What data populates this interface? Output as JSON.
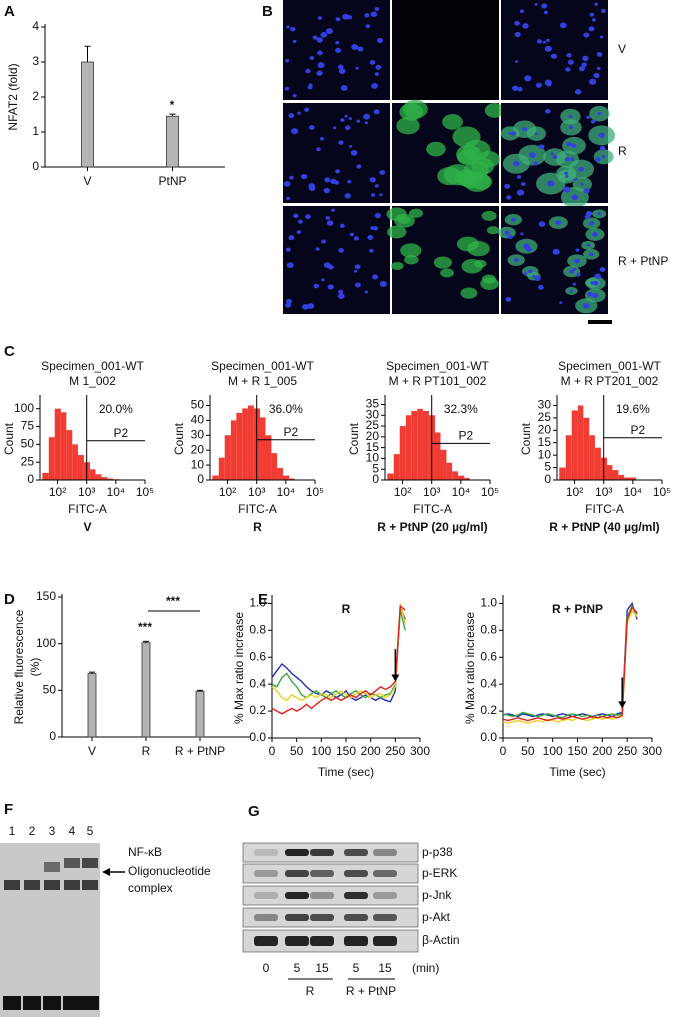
{
  "panel_labels": [
    "A",
    "B",
    "C",
    "D",
    "E",
    "F",
    "G"
  ],
  "chart_data": [
    {
      "type": "bar",
      "ylabel": "NFAT2 (fold)",
      "categories": [
        "V",
        "PtNP"
      ],
      "values": [
        3.0,
        1.45
      ],
      "errors": [
        0.45,
        0.06
      ],
      "ylim": [
        0,
        4
      ],
      "yticks": [
        0,
        1,
        2,
        3,
        4
      ],
      "color": "#b4b4b4",
      "annotations": [
        "*"
      ]
    },
    {
      "type": "bar",
      "ylabel": [
        "Relative fluorescence",
        "(%)"
      ],
      "categories": [
        "V",
        "R",
        "R + PtNP"
      ],
      "values": [
        68,
        101,
        49
      ],
      "errors": [
        1.5,
        1.5,
        1
      ],
      "ylim": [
        0,
        150
      ],
      "yticks": [
        0,
        50,
        100,
        150
      ],
      "color": "#b4b4b4",
      "annotations": [
        "***",
        "***"
      ]
    },
    {
      "type": "line",
      "title": "R",
      "ylabel": "% Max ratio increase",
      "xlabel": "Time (sec)",
      "x": [
        0,
        10,
        20,
        30,
        40,
        50,
        60,
        70,
        80,
        90,
        100,
        110,
        120,
        130,
        140,
        150,
        160,
        170,
        180,
        190,
        200,
        210,
        220,
        230,
        240,
        250,
        260,
        270
      ],
      "xlim": [
        0,
        300
      ],
      "xticks": [
        0,
        50,
        100,
        150,
        200,
        250,
        300
      ],
      "ylim": [
        0,
        1.04
      ],
      "yticks": [
        {
          "value": 0,
          "label": "0.0"
        },
        0.2,
        0.4,
        0.6,
        0.8,
        {
          "value": 1,
          "label": "1.0"
        }
      ],
      "arrow_x": 250,
      "series": [
        {
          "color": "#1f2fb0",
          "values": [
            0.45,
            0.5,
            0.55,
            0.52,
            0.48,
            0.45,
            0.42,
            0.38,
            0.35,
            0.33,
            0.32,
            0.35,
            0.33,
            0.3,
            0.32,
            0.35,
            0.3,
            0.28,
            0.3,
            0.32,
            0.3,
            0.28,
            0.3,
            0.28,
            0.27,
            0.35,
            0.98,
            0.88
          ]
        },
        {
          "color": "#3aa83a",
          "values": [
            0.4,
            0.38,
            0.45,
            0.48,
            0.42,
            0.38,
            0.32,
            0.3,
            0.33,
            0.35,
            0.32,
            0.3,
            0.33,
            0.35,
            0.32,
            0.3,
            0.33,
            0.35,
            0.32,
            0.3,
            0.33,
            0.32,
            0.3,
            0.32,
            0.33,
            0.4,
            0.95,
            0.8
          ]
        },
        {
          "color": "#f0d020",
          "values": [
            0.38,
            0.35,
            0.3,
            0.28,
            0.32,
            0.3,
            0.28,
            0.3,
            0.32,
            0.3,
            0.33,
            0.32,
            0.3,
            0.33,
            0.35,
            0.32,
            0.3,
            0.33,
            0.35,
            0.33,
            0.3,
            0.32,
            0.33,
            0.3,
            0.32,
            0.38,
            1.0,
            0.85
          ]
        },
        {
          "color": "#e02020",
          "values": [
            0.22,
            0.2,
            0.18,
            0.2,
            0.22,
            0.2,
            0.22,
            0.25,
            0.22,
            0.25,
            0.28,
            0.3,
            0.28,
            0.3,
            0.28,
            0.3,
            0.32,
            0.3,
            0.33,
            0.35,
            0.32,
            0.35,
            0.38,
            0.36,
            0.38,
            0.42,
            0.98,
            0.95
          ]
        }
      ]
    },
    {
      "type": "line",
      "title": "R + PtNP",
      "ylabel": "% Max ratio increase",
      "xlabel": "Time (sec)",
      "x": [
        0,
        10,
        20,
        30,
        40,
        50,
        60,
        70,
        80,
        90,
        100,
        110,
        120,
        130,
        140,
        150,
        160,
        170,
        180,
        190,
        200,
        210,
        220,
        230,
        240,
        250,
        260,
        270
      ],
      "xlim": [
        0,
        300
      ],
      "xticks": [
        0,
        50,
        100,
        150,
        200,
        250,
        300
      ],
      "ylim": [
        0,
        1.04
      ],
      "yticks": [
        {
          "value": 0,
          "label": "0.0"
        },
        0.2,
        0.4,
        0.6,
        0.8,
        {
          "value": 1,
          "label": "1.0"
        }
      ],
      "arrow_x": 240,
      "series": [
        {
          "color": "#1f2fb0",
          "values": [
            0.17,
            0.18,
            0.17,
            0.16,
            0.18,
            0.17,
            0.16,
            0.17,
            0.18,
            0.17,
            0.16,
            0.17,
            0.18,
            0.17,
            0.16,
            0.17,
            0.18,
            0.17,
            0.16,
            0.17,
            0.18,
            0.17,
            0.16,
            0.18,
            0.19,
            0.95,
            1.0,
            0.88
          ]
        },
        {
          "color": "#3aa83a",
          "values": [
            0.18,
            0.17,
            0.16,
            0.17,
            0.19,
            0.18,
            0.17,
            0.16,
            0.17,
            0.18,
            0.17,
            0.16,
            0.15,
            0.17,
            0.18,
            0.17,
            0.16,
            0.17,
            0.15,
            0.17,
            0.16,
            0.17,
            0.18,
            0.17,
            0.18,
            0.9,
            0.98,
            0.92
          ]
        },
        {
          "color": "#f0d020",
          "values": [
            0.12,
            0.11,
            0.12,
            0.13,
            0.12,
            0.11,
            0.12,
            0.13,
            0.12,
            0.14,
            0.13,
            0.12,
            0.13,
            0.14,
            0.13,
            0.15,
            0.14,
            0.13,
            0.14,
            0.15,
            0.14,
            0.15,
            0.14,
            0.15,
            0.16,
            0.85,
            0.95,
            0.9
          ]
        },
        {
          "color": "#e02020",
          "values": [
            0.14,
            0.13,
            0.14,
            0.15,
            0.14,
            0.13,
            0.14,
            0.15,
            0.14,
            0.13,
            0.14,
            0.15,
            0.14,
            0.15,
            0.16,
            0.15,
            0.14,
            0.15,
            0.16,
            0.15,
            0.16,
            0.15,
            0.16,
            0.15,
            0.17,
            0.88,
            0.97,
            0.93
          ]
        }
      ]
    },
    {
      "type": "histogram",
      "title": [
        "Specimen_001-WT",
        "M 1_002"
      ],
      "ylabel": "Count",
      "xlabel": "FITC-A",
      "condition": "V",
      "xscale": "log",
      "xlim": [
        25,
        100000
      ],
      "xticks": [
        {
          "value": 100,
          "label": "10²"
        },
        {
          "value": 1000,
          "label": "10³"
        },
        {
          "value": 10000,
          "label": "10⁴"
        },
        {
          "value": 100000,
          "label": "10⁵"
        }
      ],
      "ylim": [
        0,
        115
      ],
      "yticks": [
        0,
        25,
        50,
        75,
        100
      ],
      "bins": [
        30,
        50,
        80,
        130,
        200,
        320,
        500,
        800,
        1300,
        2000,
        3200,
        5000,
        8000,
        13000,
        20000,
        32000
      ],
      "counts": [
        10,
        60,
        100,
        95,
        70,
        50,
        35,
        25,
        15,
        8,
        4,
        2,
        1,
        0,
        0
      ],
      "color": "#f03c32",
      "gate_x": 1000,
      "gate_y": 55,
      "gate_name": "P2",
      "gate_percent": "20.0%"
    },
    {
      "type": "histogram",
      "title": [
        "Specimen_001-WT",
        "M + R 1_005"
      ],
      "ylabel": "Count",
      "xlabel": "FITC-A",
      "condition": "R",
      "xscale": "log",
      "xlim": [
        25,
        100000
      ],
      "xticks": [
        {
          "value": 100,
          "label": "10²"
        },
        {
          "value": 1000,
          "label": "10³"
        },
        {
          "value": 10000,
          "label": "10⁴"
        },
        {
          "value": 100000,
          "label": "10⁵"
        }
      ],
      "ylim": [
        0,
        55
      ],
      "yticks": [
        0,
        10,
        20,
        30,
        40,
        50
      ],
      "bins": [
        30,
        50,
        80,
        130,
        200,
        320,
        500,
        800,
        1300,
        2000,
        3200,
        5000,
        8000,
        13000,
        20000,
        32000
      ],
      "counts": [
        3,
        15,
        30,
        40,
        45,
        48,
        50,
        48,
        42,
        30,
        18,
        8,
        3,
        1,
        0
      ],
      "color": "#f03c32",
      "gate_x": 1000,
      "gate_y": 27,
      "gate_name": "P2",
      "gate_percent": "36.0%"
    },
    {
      "type": "histogram",
      "title": [
        "Specimen_001-WT",
        "M + R PT101_002"
      ],
      "ylabel": "Count",
      "xlabel": "FITC-A",
      "condition": "R + PtNP (20 µg/ml)",
      "xscale": "log",
      "xlim": [
        25,
        100000
      ],
      "xticks": [
        {
          "value": 100,
          "label": "10²"
        },
        {
          "value": 1000,
          "label": "10³"
        },
        {
          "value": 10000,
          "label": "10⁴"
        },
        {
          "value": 100000,
          "label": "10⁵"
        }
      ],
      "ylim": [
        0,
        38
      ],
      "yticks": [
        0,
        5,
        10,
        15,
        20,
        25,
        30,
        35
      ],
      "bins": [
        30,
        50,
        80,
        130,
        200,
        320,
        500,
        800,
        1300,
        2000,
        3200,
        5000,
        8000,
        13000,
        20000,
        32000
      ],
      "counts": [
        3,
        12,
        25,
        30,
        32,
        33,
        32,
        30,
        22,
        14,
        8,
        4,
        2,
        1,
        0
      ],
      "color": "#f03c32",
      "gate_x": 1000,
      "gate_y": 17,
      "gate_name": "P2",
      "gate_percent": "32.3%"
    },
    {
      "type": "histogram",
      "title": [
        "Specimen_001-WT",
        "M + R PT201_002"
      ],
      "ylabel": "Count",
      "xlabel": "FITC-A",
      "condition": "R + PtNP (40 µg/ml)",
      "xscale": "log",
      "xlim": [
        25,
        100000
      ],
      "xticks": [
        {
          "value": 100,
          "label": "10²"
        },
        {
          "value": 1000,
          "label": "10³"
        },
        {
          "value": 10000,
          "label": "10⁴"
        },
        {
          "value": 100000,
          "label": "10⁵"
        }
      ],
      "ylim": [
        0,
        33
      ],
      "yticks": [
        0,
        5,
        10,
        15,
        20,
        25,
        30
      ],
      "bins": [
        30,
        50,
        80,
        130,
        200,
        320,
        500,
        800,
        1300,
        2000,
        3200,
        5000,
        8000,
        13000,
        20000,
        32000
      ],
      "counts": [
        5,
        18,
        28,
        30,
        25,
        18,
        13,
        9,
        6,
        4,
        2,
        1,
        1,
        0,
        0
      ],
      "color": "#f03c32",
      "gate_x": 1000,
      "gate_y": 17,
      "gate_name": "P2",
      "gate_percent": "19.6%"
    }
  ],
  "micrographs": {
    "row_labels": [
      "V",
      "R",
      "R + PtNP"
    ]
  },
  "emsa": {
    "lanes": [
      "1",
      "2",
      "3",
      "4",
      "5"
    ],
    "label": [
      "NF-κB",
      "Oligonucleotide",
      "complex"
    ]
  },
  "western": {
    "rows": [
      "p-p38",
      "p-ERK",
      "p-Jnk",
      "p-Akt",
      "β-Actin"
    ],
    "times": [
      "0",
      "5",
      "15",
      "5",
      "15"
    ],
    "unit": "(min)",
    "groups": [
      "R",
      "R + PtNP"
    ]
  }
}
